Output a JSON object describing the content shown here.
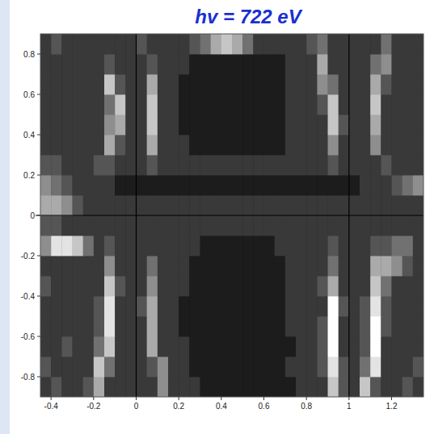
{
  "chart_data": {
    "type": "heatmap",
    "title": "hv = 722 eV",
    "xlim": [
      -0.45,
      1.35
    ],
    "ylim": [
      -0.9,
      0.9
    ],
    "xticks": [
      -0.4,
      -0.2,
      0,
      0.2,
      0.4,
      0.6,
      0.8,
      1,
      1.2
    ],
    "yticks": [
      -0.8,
      -0.6,
      -0.4,
      -0.2,
      0,
      0.2,
      0.4,
      0.6,
      0.8
    ],
    "ref_lines_x": [
      0,
      1
    ],
    "ref_lines_y": [
      0
    ],
    "zlim": [
      0,
      9
    ],
    "x_edges": [
      -0.45,
      -0.4,
      -0.35,
      -0.3,
      -0.25,
      -0.2,
      -0.15,
      -0.1,
      -0.05,
      0,
      0.05,
      0.1,
      0.15,
      0.2,
      0.25,
      0.3,
      0.35,
      0.4,
      0.45,
      0.5,
      0.55,
      0.6,
      0.65,
      0.7,
      0.75,
      0.8,
      0.85,
      0.9,
      0.95,
      1,
      1.05,
      1.1,
      1.15,
      1.2,
      1.25,
      1.3,
      1.35
    ],
    "y_edges": [
      -0.9,
      -0.8,
      -0.7,
      -0.6,
      -0.5,
      -0.4,
      -0.3,
      -0.2,
      -0.1,
      0,
      0.1,
      0.2,
      0.3,
      0.4,
      0.5,
      0.6,
      0.7,
      0.8,
      0.9
    ],
    "z": [
      [
        2,
        3,
        2,
        2,
        3,
        6,
        2,
        2,
        2,
        2,
        2,
        5,
        2,
        2,
        2,
        1,
        1,
        1,
        1,
        1,
        1,
        1,
        1,
        1,
        2,
        2,
        2,
        7,
        3,
        2,
        7,
        3,
        2,
        2,
        3,
        2
      ],
      [
        3,
        2,
        2,
        2,
        2,
        7,
        4,
        2,
        2,
        2,
        3,
        5,
        2,
        2,
        1,
        1,
        1,
        1,
        1,
        1,
        1,
        1,
        1,
        2,
        2,
        2,
        3,
        8,
        3,
        2,
        4,
        8,
        2,
        2,
        2,
        3
      ],
      [
        2,
        2,
        3,
        2,
        2,
        4,
        7,
        2,
        2,
        2,
        6,
        2,
        2,
        2,
        1,
        1,
        1,
        1,
        1,
        1,
        1,
        1,
        1,
        1,
        2,
        2,
        3,
        9,
        2,
        2,
        3,
        9,
        2,
        2,
        2,
        2
      ],
      [
        2,
        2,
        2,
        2,
        2,
        3,
        8,
        2,
        2,
        2,
        6,
        2,
        2,
        1,
        1,
        1,
        1,
        1,
        1,
        1,
        1,
        1,
        1,
        2,
        2,
        2,
        3,
        9,
        2,
        2,
        3,
        9,
        3,
        2,
        2,
        2
      ],
      [
        2,
        2,
        2,
        2,
        2,
        3,
        8,
        2,
        2,
        3,
        6,
        2,
        2,
        1,
        1,
        1,
        1,
        1,
        1,
        1,
        1,
        1,
        1,
        2,
        2,
        2,
        2,
        9,
        3,
        2,
        3,
        8,
        3,
        2,
        2,
        2
      ],
      [
        3,
        2,
        2,
        2,
        2,
        2,
        7,
        3,
        2,
        2,
        5,
        2,
        2,
        2,
        1,
        1,
        1,
        1,
        1,
        1,
        1,
        1,
        1,
        2,
        2,
        2,
        3,
        6,
        2,
        2,
        2,
        7,
        4,
        2,
        2,
        2
      ],
      [
        2,
        2,
        2,
        2,
        2,
        2,
        5,
        2,
        2,
        2,
        4,
        2,
        2,
        2,
        1,
        1,
        1,
        1,
        1,
        1,
        1,
        1,
        1,
        2,
        2,
        2,
        2,
        4,
        2,
        2,
        2,
        6,
        6,
        5,
        3,
        2
      ],
      [
        5,
        8,
        8,
        7,
        4,
        2,
        3,
        2,
        2,
        2,
        2,
        2,
        2,
        2,
        2,
        1,
        1,
        1,
        1,
        1,
        1,
        1,
        2,
        2,
        2,
        2,
        2,
        3,
        2,
        2,
        2,
        3,
        3,
        4,
        4,
        2
      ],
      [
        3,
        3,
        2,
        2,
        2,
        2,
        2,
        2,
        2,
        2,
        2,
        2,
        2,
        2,
        2,
        2,
        2,
        2,
        2,
        2,
        2,
        2,
        2,
        2,
        2,
        2,
        2,
        2,
        2,
        2,
        2,
        2,
        2,
        2,
        2,
        2
      ],
      [
        6,
        6,
        5,
        3,
        2,
        2,
        2,
        2,
        2,
        2,
        2,
        2,
        2,
        2,
        2,
        2,
        2,
        2,
        2,
        2,
        2,
        2,
        2,
        2,
        2,
        2,
        2,
        2,
        2,
        2,
        2,
        2,
        2,
        2,
        2,
        2
      ],
      [
        5,
        4,
        3,
        2,
        2,
        2,
        2,
        1,
        1,
        1,
        1,
        1,
        1,
        1,
        1,
        1,
        1,
        1,
        1,
        1,
        1,
        1,
        1,
        1,
        1,
        1,
        1,
        1,
        1,
        1,
        2,
        2,
        2,
        3,
        4,
        5
      ],
      [
        3,
        3,
        2,
        2,
        2,
        3,
        3,
        2,
        2,
        2,
        3,
        2,
        2,
        2,
        2,
        2,
        2,
        2,
        2,
        2,
        2,
        2,
        2,
        2,
        2,
        2,
        2,
        3,
        2,
        2,
        2,
        2,
        3,
        2,
        2,
        2
      ],
      [
        2,
        2,
        2,
        2,
        2,
        2,
        6,
        3,
        2,
        2,
        6,
        2,
        2,
        2,
        1,
        1,
        1,
        1,
        1,
        1,
        1,
        1,
        1,
        2,
        2,
        2,
        2,
        5,
        2,
        2,
        2,
        5,
        2,
        2,
        2,
        2
      ],
      [
        2,
        2,
        2,
        2,
        2,
        2,
        5,
        6,
        2,
        2,
        7,
        2,
        2,
        1,
        1,
        1,
        1,
        1,
        1,
        1,
        1,
        1,
        1,
        2,
        2,
        2,
        2,
        7,
        3,
        2,
        2,
        6,
        2,
        2,
        2,
        2
      ],
      [
        2,
        2,
        2,
        2,
        2,
        2,
        4,
        7,
        2,
        2,
        7,
        2,
        2,
        1,
        1,
        1,
        1,
        1,
        1,
        1,
        1,
        1,
        1,
        2,
        2,
        2,
        3,
        7,
        2,
        2,
        2,
        7,
        2,
        2,
        2,
        2
      ],
      [
        2,
        2,
        2,
        2,
        2,
        2,
        7,
        3,
        2,
        2,
        6,
        2,
        2,
        1,
        1,
        1,
        1,
        1,
        1,
        1,
        1,
        1,
        1,
        2,
        2,
        2,
        5,
        4,
        2,
        2,
        2,
        6,
        3,
        2,
        2,
        2
      ],
      [
        2,
        2,
        2,
        2,
        2,
        2,
        3,
        2,
        2,
        2,
        3,
        2,
        2,
        2,
        1,
        1,
        1,
        1,
        1,
        1,
        1,
        1,
        1,
        2,
        2,
        2,
        6,
        2,
        2,
        2,
        2,
        4,
        5,
        2,
        2,
        2
      ],
      [
        2,
        3,
        2,
        2,
        2,
        2,
        2,
        2,
        2,
        3,
        2,
        2,
        2,
        2,
        3,
        4,
        6,
        7,
        6,
        4,
        2,
        2,
        2,
        2,
        2,
        3,
        4,
        2,
        2,
        2,
        2,
        2,
        4,
        2,
        2,
        2
      ]
    ]
  }
}
